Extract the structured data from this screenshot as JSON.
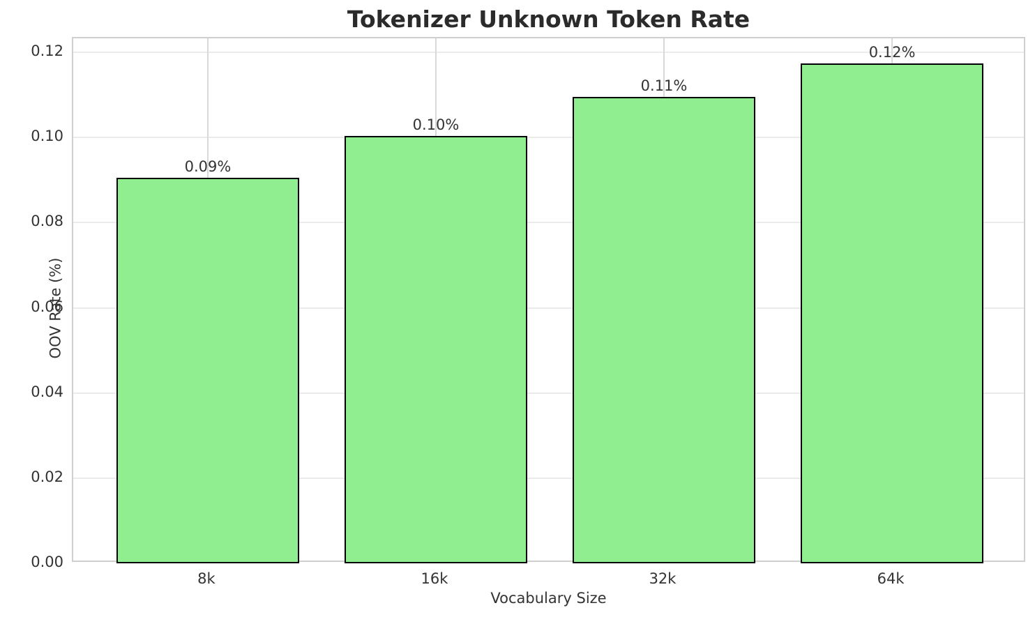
{
  "chart_data": {
    "type": "bar",
    "title": "Tokenizer Unknown Token Rate",
    "xlabel": "Vocabulary Size",
    "ylabel": "OOV Rate (%)",
    "categories": [
      "8k",
      "16k",
      "32k",
      "64k"
    ],
    "values": [
      0.0905,
      0.1004,
      0.1096,
      0.1174
    ],
    "bar_labels": [
      "0.09%",
      "0.10%",
      "0.11%",
      "0.12%"
    ],
    "ytick_labels": [
      "0.00",
      "0.02",
      "0.04",
      "0.06",
      "0.08",
      "0.10",
      "0.12"
    ],
    "ytick_values": [
      0.0,
      0.02,
      0.04,
      0.06,
      0.08,
      0.1,
      0.12
    ],
    "ylim": [
      0,
      0.1233
    ],
    "grid": true,
    "legend_position": "none",
    "bar_color": "#90EE90",
    "bar_edge_color": "#000000",
    "grid_color_h": "#ebebeb",
    "grid_color_v": "#d8d8d8",
    "text_color": "#333333",
    "title_color": "#2b2b2b"
  }
}
